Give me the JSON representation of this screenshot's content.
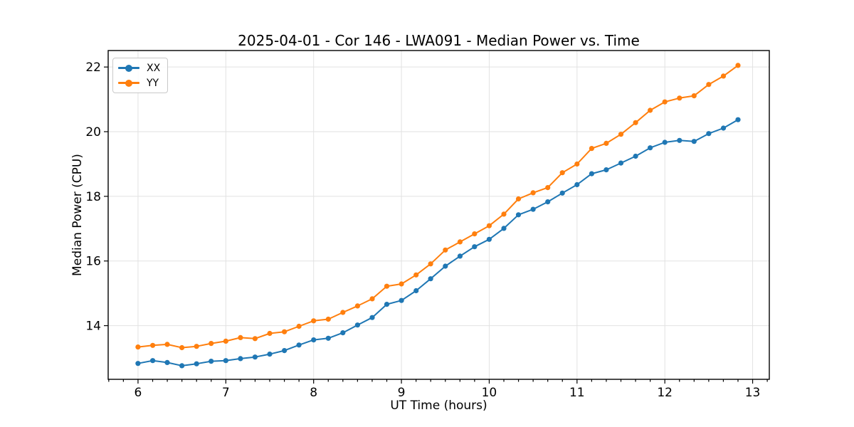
{
  "figure": {
    "background": "#ffffff",
    "text_color": "#000000",
    "grid_color": "#e2e2e2",
    "spine_color": "#000000"
  },
  "chart_data": {
    "type": "line",
    "title": "2025-04-01 - Cor 146 - LWA091 - Median Power vs. Time",
    "xlabel": "UT Time (hours)",
    "ylabel": "Median Power (CPU)",
    "xlim": [
      5.66,
      13.19
    ],
    "ylim": [
      12.34,
      22.51
    ],
    "xticks": [
      6,
      7,
      8,
      9,
      10,
      11,
      12,
      13
    ],
    "yticks": [
      14,
      16,
      18,
      20,
      22
    ],
    "x_minor_step_hours": 0.16667,
    "grid": true,
    "legend_position": "upper left",
    "x": [
      6.0,
      6.167,
      6.333,
      6.5,
      6.667,
      6.833,
      7.0,
      7.167,
      7.333,
      7.5,
      7.667,
      7.833,
      8.0,
      8.167,
      8.333,
      8.5,
      8.667,
      8.833,
      9.0,
      9.167,
      9.333,
      9.5,
      9.667,
      9.833,
      10.0,
      10.167,
      10.333,
      10.5,
      10.667,
      10.833,
      11.0,
      11.167,
      11.333,
      11.5,
      11.667,
      11.833,
      12.0,
      12.167,
      12.333,
      12.5,
      12.667,
      12.833
    ],
    "series": [
      {
        "name": "XX",
        "color": "#1f77b4",
        "values": [
          12.83,
          12.92,
          12.86,
          12.76,
          12.82,
          12.9,
          12.92,
          12.98,
          13.03,
          13.12,
          13.23,
          13.4,
          13.56,
          13.61,
          13.78,
          14.02,
          14.25,
          14.66,
          14.78,
          15.08,
          15.45,
          15.84,
          16.15,
          16.44,
          16.67,
          17.01,
          17.43,
          17.6,
          17.83,
          18.1,
          18.36,
          18.7,
          18.82,
          19.03,
          19.24,
          19.5,
          19.67,
          19.73,
          19.7,
          19.94,
          20.11,
          20.37
        ]
      },
      {
        "name": "YY",
        "color": "#ff7f0e",
        "values": [
          13.34,
          13.39,
          13.42,
          13.32,
          13.36,
          13.45,
          13.52,
          13.63,
          13.6,
          13.76,
          13.81,
          13.98,
          14.15,
          14.2,
          14.41,
          14.61,
          14.83,
          15.22,
          15.29,
          15.57,
          15.91,
          16.34,
          16.59,
          16.84,
          17.09,
          17.45,
          17.92,
          18.11,
          18.27,
          18.73,
          19.0,
          19.48,
          19.64,
          19.92,
          20.28,
          20.66,
          20.92,
          21.04,
          21.11,
          21.46,
          21.72,
          22.05
        ]
      }
    ]
  }
}
